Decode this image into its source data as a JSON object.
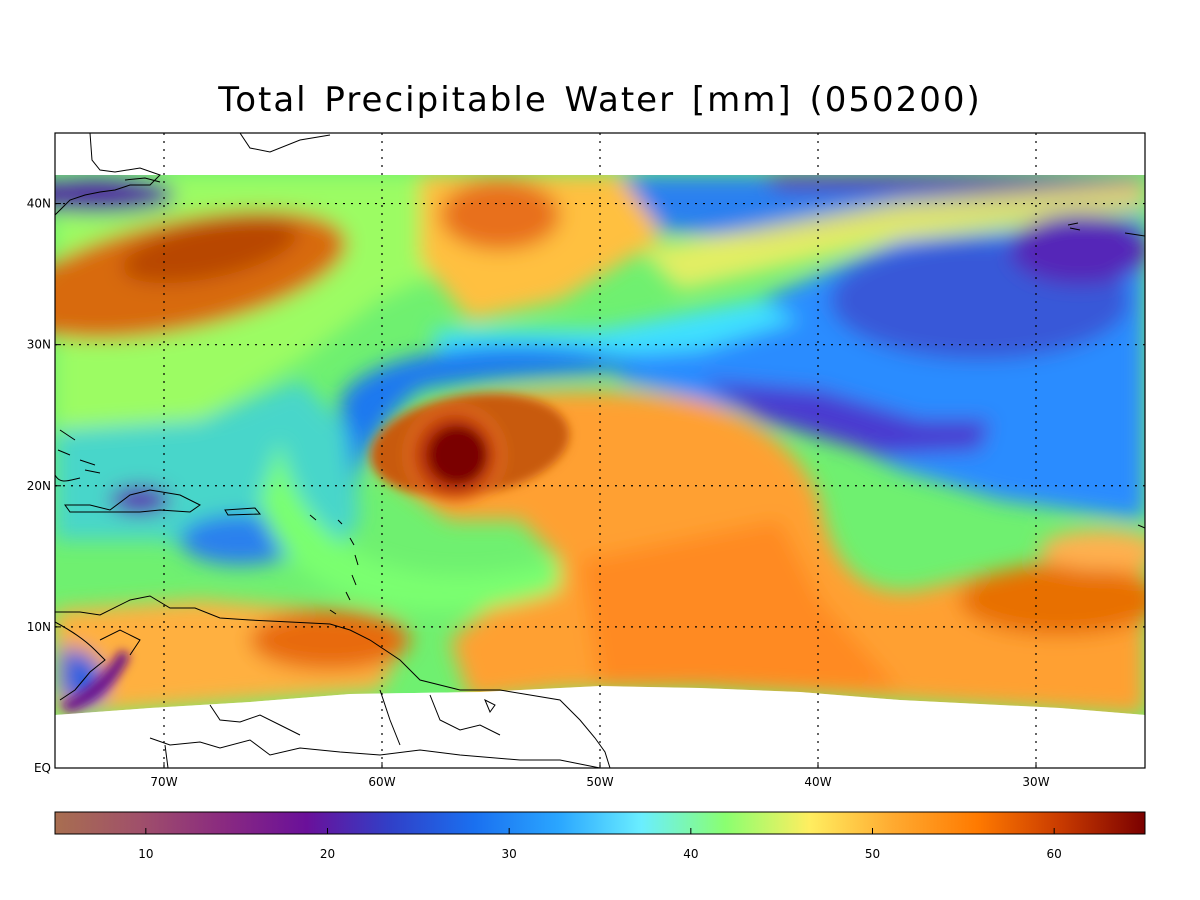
{
  "title": "Total Precipitable Water [mm]  (050200)",
  "map": {
    "lon_range": [
      -75,
      -25
    ],
    "lat_range": [
      0,
      45
    ],
    "lon_ticks": [
      {
        "value": -70,
        "label": "70W"
      },
      {
        "value": -60,
        "label": "60W"
      },
      {
        "value": -50,
        "label": "50W"
      },
      {
        "value": -40,
        "label": "40W"
      },
      {
        "value": -30,
        "label": "30W"
      }
    ],
    "lat_ticks": [
      {
        "value": 0,
        "label": "EQ"
      },
      {
        "value": 10,
        "label": "10N"
      },
      {
        "value": 20,
        "label": "20N"
      },
      {
        "value": 30,
        "label": "30N"
      },
      {
        "value": 40,
        "label": "40N"
      }
    ],
    "grid": true,
    "feature": {
      "name": "tropical cyclone",
      "lon": -56,
      "lat": 22
    }
  },
  "colorbar": {
    "range": [
      5,
      65
    ],
    "ticks": [
      10,
      20,
      30,
      40,
      50,
      60
    ],
    "tick_labels": [
      "10",
      "20",
      "30",
      "40",
      "50",
      "60"
    ],
    "colors": [
      "#a86e50",
      "#a0506a",
      "#8a2a80",
      "#6a109a",
      "#3040c8",
      "#1a70f0",
      "#2aa6ff",
      "#6aeeff",
      "#8aff70",
      "#ffee60",
      "#ffaa30",
      "#ff7a00",
      "#c83a00",
      "#7a0000"
    ]
  }
}
